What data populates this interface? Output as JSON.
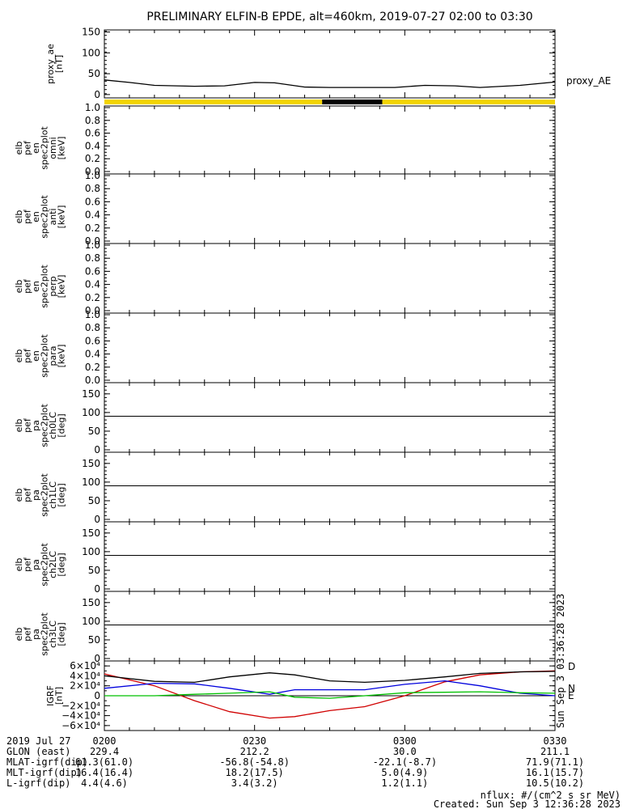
{
  "title": "PRELIMINARY ELFIN-B EPDE, alt=460km, 2019-07-27 02:00 to 03:30",
  "footer": {
    "nflux_note": "nflux: #/(cm^2 s sr MeV)",
    "created": "Created: Sun Sep  3 12:36:28 2023",
    "side_stamp": "Sun Sep  3 03:36:28 2023"
  },
  "orbit_table": {
    "labels": [
      "2019 Jul 27",
      "GLON (east)",
      "MLAT-igrf(dip)",
      "MLT-igrf(dip)",
      "L-igrf(dip)"
    ],
    "columns": [
      {
        "time": "0200",
        "glon": "229.4",
        "mlat": "61.3(61.0)",
        "mlt": "16.4(16.4)",
        "l": "4.4(4.6)"
      },
      {
        "time": "0230",
        "glon": "212.2",
        "mlat": "-56.8(-54.8)",
        "mlt": "18.2(17.5)",
        "l": "3.4(3.2)"
      },
      {
        "time": "0300",
        "glon": "30.0",
        "mlat": "-22.1(-8.7)",
        "mlt": "5.0(4.9)",
        "l": "1.2(1.1)"
      },
      {
        "time": "0330",
        "glon": "211.1",
        "mlat": "71.9(71.1)",
        "mlt": "16.1(15.7)",
        "l": "10.5(10.2)"
      }
    ]
  },
  "chart_data": [
    {
      "type": "line",
      "panel": "proxy_ae",
      "ylabel": [
        "proxy_ae",
        "[nT]"
      ],
      "legend": "proxy_AE",
      "ylim": [
        0,
        150
      ],
      "yticks": [
        0,
        50,
        100,
        150
      ],
      "tick_labels": [
        "0",
        "50",
        "100",
        "150"
      ],
      "x_minutes": [
        0,
        5,
        10,
        18,
        24,
        30,
        34,
        40,
        45,
        52,
        58,
        64,
        70,
        75,
        83,
        90
      ],
      "values": [
        35,
        29,
        22,
        20,
        21,
        29,
        28,
        18,
        17,
        17,
        17,
        22,
        21,
        17,
        22,
        30
      ]
    },
    {
      "type": "bar",
      "panel": "orbit_bar",
      "segments": [
        {
          "from_minute": 0,
          "to_minute": 43.5,
          "color": "#f2d400"
        },
        {
          "from_minute": 43.5,
          "to_minute": 55.5,
          "color": "#000000"
        },
        {
          "from_minute": 55.5,
          "to_minute": 90,
          "color": "#f2d400"
        }
      ]
    },
    {
      "type": "heatmap",
      "panel": "omni",
      "ylabel": [
        "elb",
        "pef",
        "en",
        "spec2plot",
        "omni",
        "[keV]"
      ],
      "ylim": [
        0,
        1
      ],
      "tick_labels": [
        "0.0",
        "0.2",
        "0.4",
        "0.6",
        "0.8",
        "1.0"
      ]
    },
    {
      "type": "heatmap",
      "panel": "anti",
      "ylabel": [
        "elb",
        "pef",
        "en",
        "spec2plot",
        "anti",
        "[keV]"
      ],
      "ylim": [
        0,
        1
      ],
      "tick_labels": [
        "0.0",
        "0.2",
        "0.4",
        "0.6",
        "0.8",
        "1.0"
      ]
    },
    {
      "type": "heatmap",
      "panel": "perp",
      "ylabel": [
        "elb",
        "pef",
        "en",
        "spec2plot",
        "perp",
        "[keV]"
      ],
      "ylim": [
        0,
        1
      ],
      "tick_labels": [
        "0.0",
        "0.2",
        "0.4",
        "0.6",
        "0.8",
        "1.0"
      ]
    },
    {
      "type": "heatmap",
      "panel": "para",
      "ylabel": [
        "elb",
        "pef",
        "en",
        "spec2plot",
        "para",
        "[keV]"
      ],
      "ylim": [
        0,
        1
      ],
      "tick_labels": [
        "0.0",
        "0.2",
        "0.4",
        "0.6",
        "0.8",
        "1.0"
      ]
    },
    {
      "type": "heatmap",
      "panel": "ch0LC",
      "ylabel": [
        "elb",
        "pef",
        "pa",
        "spec2plot",
        "ch0LC",
        "[deg]"
      ],
      "ylim": [
        0,
        180
      ],
      "tick_labels": [
        "0",
        "50",
        "100",
        "150"
      ],
      "reference_line_deg": 90
    },
    {
      "type": "heatmap",
      "panel": "ch1LC",
      "ylabel": [
        "elb",
        "pef",
        "pa",
        "spec2plot",
        "ch1LC",
        "[deg]"
      ],
      "ylim": [
        0,
        180
      ],
      "tick_labels": [
        "0",
        "50",
        "100",
        "150"
      ],
      "reference_line_deg": 90
    },
    {
      "type": "heatmap",
      "panel": "ch2LC",
      "ylabel": [
        "elb",
        "pef",
        "pa",
        "spec2plot",
        "ch2LC",
        "[deg]"
      ],
      "ylim": [
        0,
        180
      ],
      "tick_labels": [
        "0",
        "50",
        "100",
        "150"
      ],
      "reference_line_deg": 90
    },
    {
      "type": "heatmap",
      "panel": "ch3LC",
      "ylabel": [
        "elb",
        "pef",
        "pa",
        "spec2plot",
        "ch3LC",
        "[deg]"
      ],
      "ylim": [
        0,
        180
      ],
      "tick_labels": [
        "0",
        "50",
        "100",
        "150"
      ],
      "reference_line_deg": 90
    },
    {
      "type": "line",
      "panel": "igrf",
      "ylabel": [
        "IGRF",
        "[nT]"
      ],
      "ylim": [
        -70000,
        70000
      ],
      "yticks": [
        -60000,
        -40000,
        -20000,
        0,
        20000,
        40000,
        60000
      ],
      "tick_labels": [
        "−6×10⁴",
        "−4×10⁴",
        "−2×10⁴",
        "0",
        "2×10⁴",
        "4×10⁴",
        "6×10⁴"
      ],
      "x_minutes": [
        0,
        10,
        18,
        25,
        33,
        38,
        45,
        52,
        60,
        68,
        75,
        83,
        90
      ],
      "series": [
        {
          "name": "D",
          "color": "#d00000",
          "values": [
            44000,
            20000,
            -10000,
            -32000,
            -45000,
            -42000,
            -30000,
            -22000,
            0,
            28000,
            42000,
            48000,
            50000
          ]
        },
        {
          "name": "N",
          "color": "#0000dd",
          "values": [
            15000,
            25000,
            24000,
            15000,
            3000,
            12000,
            12000,
            12000,
            23000,
            30000,
            20000,
            5000,
            0
          ]
        },
        {
          "name": "E",
          "color": "#00c000",
          "values": [
            0,
            0,
            3000,
            5000,
            8000,
            -3000,
            -5000,
            0,
            6000,
            7000,
            8000,
            6000,
            5000
          ]
        },
        {
          "name": "",
          "color": "#000000",
          "values": [
            40000,
            29000,
            27000,
            38000,
            46000,
            42000,
            30000,
            27000,
            31000,
            38000,
            45000,
            48000,
            49000
          ]
        }
      ]
    }
  ],
  "x_axis": {
    "range_minutes": [
      0,
      90
    ],
    "major_minutes": [
      0,
      30,
      60,
      90
    ]
  }
}
